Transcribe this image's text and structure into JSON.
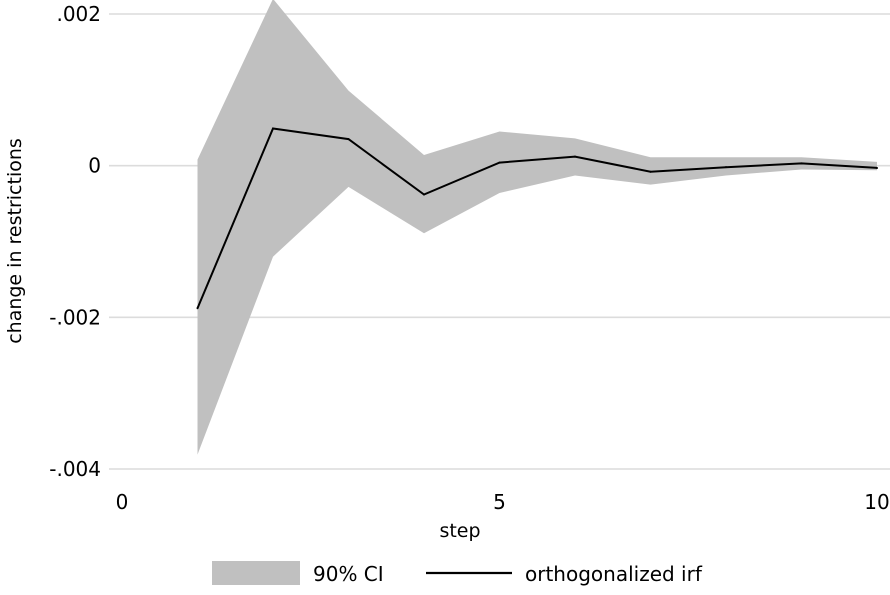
{
  "chart_data": {
    "type": "line",
    "title": "",
    "xlabel": "step",
    "ylabel": "change in restrictions",
    "xlim": [
      0,
      10
    ],
    "ylim": [
      -0.004,
      0.002
    ],
    "x_ticks": [
      0,
      5,
      10
    ],
    "x_tick_labels": [
      "0",
      "5",
      "10"
    ],
    "y_ticks": [
      0.002,
      0,
      -0.002,
      -0.004
    ],
    "y_tick_labels": [
      ".002",
      "0",
      "-.002",
      "-.004"
    ],
    "grid": true,
    "legend_position": "bottom",
    "x": [
      1,
      2,
      3,
      4,
      5,
      6,
      7,
      8,
      9,
      10
    ],
    "series": [
      {
        "name": "orthogonalized irf",
        "kind": "line",
        "color": "#000000",
        "values": [
          -0.00188,
          0.00049,
          0.00035,
          -0.00038,
          4e-05,
          0.00012,
          -8e-05,
          -2e-05,
          3e-05,
          -3e-05
        ]
      },
      {
        "name": "90% CI",
        "kind": "band",
        "color": "#c0c0c0",
        "lower": [
          -0.00381,
          -0.0012,
          -0.00028,
          -0.00089,
          -0.00036,
          -0.00013,
          -0.00025,
          -0.00013,
          -5e-05,
          -6e-05
        ],
        "upper": [
          8e-05,
          0.0022,
          0.00099,
          0.00014,
          0.00045,
          0.00036,
          0.00011,
          0.00011,
          0.00011,
          5e-05
        ]
      }
    ]
  }
}
